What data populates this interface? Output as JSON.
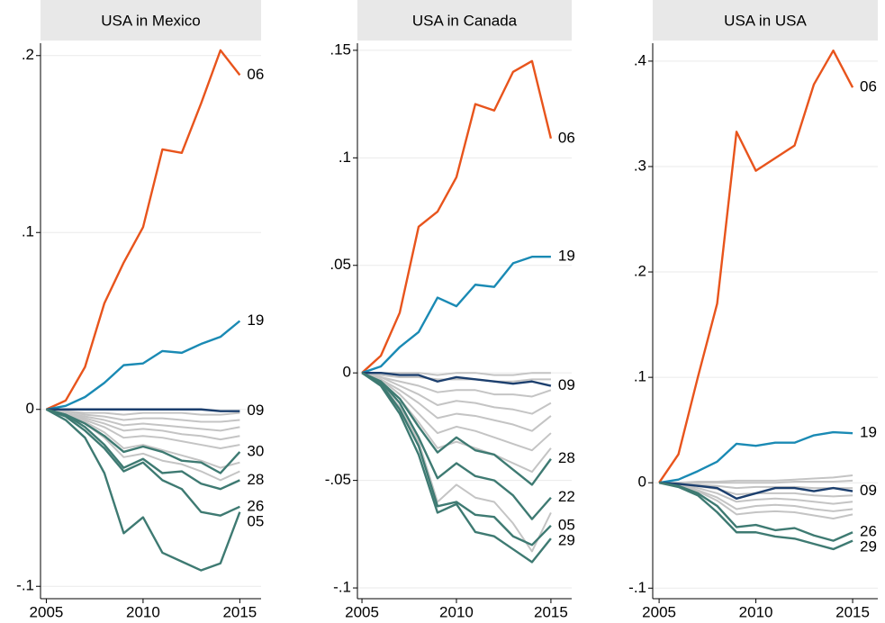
{
  "chart_data": [
    {
      "type": "line",
      "title": "USA in Mexico",
      "grid": true,
      "x": [
        2005,
        2006,
        2007,
        2008,
        2009,
        2010,
        2011,
        2012,
        2013,
        2014,
        2015
      ],
      "xlim": [
        2004.7,
        2016.1
      ],
      "xticks": [
        2005,
        2010,
        2015
      ],
      "ylim": [
        -0.107,
        0.207
      ],
      "yticks": [
        {
          "value": -0.1,
          "label": "-.1"
        },
        0,
        {
          "value": 0.1,
          "label": ".1"
        },
        {
          "value": 0.2,
          "label": ".2"
        }
      ],
      "series": [
        {
          "color": "#c4c4c4",
          "values": [
            0,
            -0.001,
            -0.002,
            -0.002,
            -0.003,
            -0.002,
            -0.002,
            -0.002,
            -0.003,
            -0.003,
            -0.002
          ]
        },
        {
          "color": "#c4c4c4",
          "values": [
            0,
            -0.001,
            -0.003,
            -0.004,
            -0.006,
            -0.005,
            -0.005,
            -0.006,
            -0.007,
            -0.007,
            -0.006
          ]
        },
        {
          "color": "#c4c4c4",
          "values": [
            0,
            -0.002,
            -0.004,
            -0.006,
            -0.009,
            -0.008,
            -0.009,
            -0.01,
            -0.011,
            -0.012,
            -0.01
          ]
        },
        {
          "color": "#c4c4c4",
          "values": [
            0,
            -0.002,
            -0.005,
            -0.008,
            -0.012,
            -0.011,
            -0.012,
            -0.014,
            -0.015,
            -0.017,
            -0.015
          ]
        },
        {
          "color": "#c4c4c4",
          "values": [
            0,
            -0.002,
            -0.006,
            -0.01,
            -0.016,
            -0.015,
            -0.016,
            -0.018,
            -0.02,
            -0.022,
            -0.02
          ]
        },
        {
          "color": "#c4c4c4",
          "values": [
            0,
            -0.003,
            -0.007,
            -0.013,
            -0.022,
            -0.02,
            -0.023,
            -0.026,
            -0.029,
            -0.033,
            -0.03
          ]
        },
        {
          "color": "#c4c4c4",
          "values": [
            0,
            -0.003,
            -0.008,
            -0.016,
            -0.027,
            -0.025,
            -0.029,
            -0.031,
            -0.035,
            -0.04,
            -0.035
          ]
        },
        {
          "name": "06",
          "color": "#e8541c",
          "values": [
            0,
            0.005,
            0.024,
            0.06,
            0.083,
            0.103,
            0.147,
            0.145,
            0.173,
            0.203,
            0.189
          ]
        },
        {
          "name": "19",
          "color": "#1a8ab4",
          "values": [
            0,
            0.002,
            0.007,
            0.015,
            0.025,
            0.026,
            0.033,
            0.032,
            0.037,
            0.041,
            0.05
          ]
        },
        {
          "name": "09",
          "color": "#1c3f6e",
          "values": [
            0,
            0,
            0,
            0,
            0,
            0,
            0,
            0,
            0,
            -0.001,
            -0.001
          ]
        },
        {
          "name": "30",
          "color": "#3e7a72",
          "values": [
            0,
            -0.003,
            -0.008,
            -0.015,
            -0.024,
            -0.021,
            -0.024,
            -0.029,
            -0.03,
            -0.036,
            -0.024
          ]
        },
        {
          "name": "28",
          "color": "#3e7a72",
          "values": [
            0,
            -0.003,
            -0.01,
            -0.02,
            -0.033,
            -0.028,
            -0.036,
            -0.035,
            -0.042,
            -0.045,
            -0.04
          ]
        },
        {
          "name": "26",
          "color": "#3e7a72",
          "values": [
            0,
            -0.004,
            -0.012,
            -0.022,
            -0.035,
            -0.03,
            -0.04,
            -0.045,
            -0.058,
            -0.06,
            -0.055
          ]
        },
        {
          "name": "05",
          "color": "#3e7a72",
          "values": [
            0,
            -0.006,
            -0.016,
            -0.036,
            -0.07,
            -0.061,
            -0.081,
            -0.086,
            -0.091,
            -0.087,
            -0.058
          ]
        }
      ]
    },
    {
      "type": "line",
      "title": "USA in Canada",
      "grid": true,
      "x": [
        2005,
        2006,
        2007,
        2008,
        2009,
        2010,
        2011,
        2012,
        2013,
        2014,
        2015
      ],
      "xlim": [
        2004.76,
        2016.1
      ],
      "xticks": [
        2005,
        2010,
        2015
      ],
      "ylim": [
        -0.105,
        0.1533
      ],
      "yticks": [
        {
          "value": -0.1,
          "label": "-.1"
        },
        {
          "value": -0.05,
          "label": "-.05"
        },
        0,
        {
          "value": 0.05,
          "label": ".05"
        },
        {
          "value": 0.1,
          "label": ".1"
        },
        {
          "value": 0.15,
          "label": ".15"
        }
      ],
      "series": [
        {
          "color": "#c4c4c4",
          "values": [
            0,
            0,
            0,
            0,
            -0.001,
            0,
            0,
            -0.001,
            -0.001,
            0,
            0
          ]
        },
        {
          "color": "#c4c4c4",
          "values": [
            0,
            -0.001,
            -0.002,
            -0.002,
            -0.003,
            -0.003,
            -0.003,
            -0.004,
            -0.004,
            -0.003,
            -0.003
          ]
        },
        {
          "color": "#c4c4c4",
          "values": [
            0,
            -0.002,
            -0.004,
            -0.006,
            -0.009,
            -0.008,
            -0.008,
            -0.01,
            -0.01,
            -0.011,
            -0.008
          ]
        },
        {
          "color": "#c4c4c4",
          "values": [
            0,
            -0.002,
            -0.006,
            -0.01,
            -0.015,
            -0.013,
            -0.014,
            -0.016,
            -0.017,
            -0.019,
            -0.014
          ]
        },
        {
          "color": "#c4c4c4",
          "values": [
            0,
            -0.003,
            -0.008,
            -0.014,
            -0.021,
            -0.019,
            -0.02,
            -0.022,
            -0.024,
            -0.027,
            -0.02
          ]
        },
        {
          "color": "#c4c4c4",
          "values": [
            0,
            -0.003,
            -0.01,
            -0.019,
            -0.028,
            -0.025,
            -0.027,
            -0.03,
            -0.033,
            -0.036,
            -0.028
          ]
        },
        {
          "color": "#c4c4c4",
          "values": [
            0,
            -0.004,
            -0.012,
            -0.023,
            -0.035,
            -0.032,
            -0.035,
            -0.038,
            -0.042,
            -0.046,
            -0.035
          ]
        },
        {
          "color": "#c4c4c4",
          "values": [
            0,
            -0.005,
            -0.016,
            -0.032,
            -0.06,
            -0.052,
            -0.058,
            -0.06,
            -0.07,
            -0.083,
            -0.065
          ]
        },
        {
          "name": "06",
          "color": "#e8541c",
          "values": [
            0,
            0.008,
            0.028,
            0.068,
            0.075,
            0.091,
            0.125,
            0.122,
            0.14,
            0.145,
            0.109
          ]
        },
        {
          "name": "19",
          "color": "#1a8ab4",
          "values": [
            0,
            0.003,
            0.012,
            0.019,
            0.035,
            0.031,
            0.041,
            0.04,
            0.051,
            0.054,
            0.054
          ]
        },
        {
          "name": "09",
          "color": "#1c3f6e",
          "values": [
            0,
            0,
            -0.001,
            -0.001,
            -0.004,
            -0.002,
            -0.003,
            -0.004,
            -0.005,
            -0.004,
            -0.006
          ]
        },
        {
          "name": "28",
          "color": "#3e7a72",
          "values": [
            0,
            -0.004,
            -0.012,
            -0.025,
            -0.037,
            -0.03,
            -0.036,
            -0.038,
            -0.045,
            -0.052,
            -0.04
          ]
        },
        {
          "name": "22",
          "color": "#3e7a72",
          "values": [
            0,
            -0.004,
            -0.014,
            -0.03,
            -0.049,
            -0.042,
            -0.048,
            -0.05,
            -0.057,
            -0.068,
            -0.058
          ]
        },
        {
          "name": "05",
          "color": "#3e7a72",
          "values": [
            0,
            -0.005,
            -0.017,
            -0.034,
            -0.062,
            -0.06,
            -0.066,
            -0.067,
            -0.076,
            -0.08,
            -0.071
          ]
        },
        {
          "name": "29",
          "color": "#3e7a72",
          "values": [
            0,
            -0.006,
            -0.019,
            -0.038,
            -0.065,
            -0.061,
            -0.074,
            -0.076,
            -0.082,
            -0.088,
            -0.077
          ]
        }
      ]
    },
    {
      "type": "line",
      "title": "USA in USA",
      "grid": true,
      "x": [
        2005,
        2006,
        2007,
        2008,
        2009,
        2010,
        2011,
        2012,
        2013,
        2014,
        2015
      ],
      "xlim": [
        2004.67,
        2016.3
      ],
      "xticks": [
        2005,
        2010,
        2015
      ],
      "ylim": [
        -0.11,
        0.417
      ],
      "yticks": [
        {
          "value": -0.1,
          "label": "-.1"
        },
        0,
        {
          "value": 0.1,
          "label": ".1"
        },
        {
          "value": 0.2,
          "label": ".2"
        },
        {
          "value": 0.3,
          "label": ".3"
        },
        {
          "value": 0.4,
          "label": ".4"
        }
      ],
      "series": [
        {
          "color": "#c4c4c4",
          "values": [
            0,
            0,
            0.001,
            0.001,
            0.002,
            0.002,
            0.002,
            0.003,
            0.004,
            0.005,
            0.007
          ]
        },
        {
          "color": "#c4c4c4",
          "values": [
            0,
            0,
            0,
            0,
            0,
            0,
            0,
            0.001,
            0.001,
            0.001,
            0.002
          ]
        },
        {
          "color": "#c4c4c4",
          "values": [
            0,
            -0.001,
            -0.002,
            -0.003,
            -0.005,
            -0.004,
            -0.004,
            -0.004,
            -0.005,
            -0.005,
            -0.005
          ]
        },
        {
          "color": "#c4c4c4",
          "values": [
            0,
            -0.001,
            -0.003,
            -0.006,
            -0.011,
            -0.01,
            -0.01,
            -0.01,
            -0.012,
            -0.013,
            -0.012
          ]
        },
        {
          "color": "#c4c4c4",
          "values": [
            0,
            -0.002,
            -0.005,
            -0.01,
            -0.018,
            -0.016,
            -0.015,
            -0.016,
            -0.018,
            -0.02,
            -0.018
          ]
        },
        {
          "color": "#c4c4c4",
          "values": [
            0,
            -0.002,
            -0.007,
            -0.014,
            -0.025,
            -0.022,
            -0.021,
            -0.022,
            -0.025,
            -0.027,
            -0.025
          ]
        },
        {
          "color": "#c4c4c4",
          "values": [
            0,
            -0.003,
            -0.008,
            -0.017,
            -0.03,
            -0.028,
            -0.027,
            -0.028,
            -0.031,
            -0.034,
            -0.03
          ]
        },
        {
          "name": "06",
          "color": "#e8541c",
          "values": [
            0,
            0.027,
            0.1,
            0.17,
            0.333,
            0.296,
            0.308,
            0.32,
            0.378,
            0.41,
            0.375
          ]
        },
        {
          "name": "19",
          "color": "#1a8ab4",
          "values": [
            0,
            0.003,
            0.011,
            0.02,
            0.037,
            0.035,
            0.038,
            0.038,
            0.045,
            0.048,
            0.047
          ]
        },
        {
          "name": "09",
          "color": "#1c3f6e",
          "values": [
            0,
            -0.001,
            -0.003,
            -0.005,
            -0.015,
            -0.01,
            -0.005,
            -0.005,
            -0.008,
            -0.005,
            -0.008
          ]
        },
        {
          "name": "26",
          "color": "#3e7a72",
          "values": [
            0,
            -0.003,
            -0.01,
            -0.022,
            -0.042,
            -0.04,
            -0.045,
            -0.043,
            -0.05,
            -0.055,
            -0.047
          ]
        },
        {
          "name": "29",
          "color": "#3e7a72",
          "values": [
            0,
            -0.004,
            -0.012,
            -0.028,
            -0.047,
            -0.047,
            -0.051,
            -0.053,
            -0.058,
            -0.063,
            -0.055
          ]
        }
      ]
    }
  ]
}
